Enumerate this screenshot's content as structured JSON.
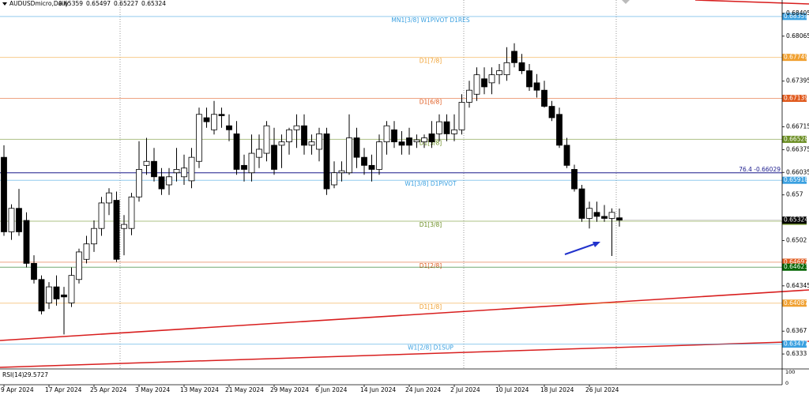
{
  "chart_data": {
    "type": "candlestick",
    "title": "AUDUSDmicro,Daily",
    "ylim": [
      0.63119,
      0.68604
    ],
    "yticks": [
      0.68405,
      0.68065,
      0.67395,
      0.66715,
      0.66375,
      0.66035,
      0.657,
      0.6502,
      0.64345,
      0.6367,
      0.6333
    ],
    "categories": [
      "9 Apr 2024",
      null,
      null,
      null,
      null,
      null,
      "17 Apr 2024",
      null,
      null,
      null,
      null,
      null,
      "25 Apr 2024",
      null,
      null,
      null,
      null,
      null,
      "3 May 2024",
      null,
      null,
      null,
      null,
      null,
      "13 May 2024",
      null,
      null,
      null,
      null,
      null,
      "21 May 2024",
      null,
      null,
      null,
      null,
      null,
      "29 May 2024",
      null,
      null,
      null,
      null,
      null,
      "6 Jun 2024",
      null,
      null,
      null,
      null,
      null,
      "14 Jun 2024",
      null,
      null,
      null,
      null,
      null,
      "24 Jun 2024",
      null,
      null,
      null,
      null,
      null,
      "2 Jul 2024",
      null,
      null,
      null,
      null,
      null,
      "10 Jul 2024",
      null,
      null,
      null,
      null,
      null,
      "18 Jul 2024",
      null,
      null,
      null,
      null,
      null,
      "26 Jul 2024",
      null,
      null,
      null,
      null
    ],
    "up_color": "#ffffff",
    "down_color": "#000000",
    "candles": [
      [
        0.6626,
        0.6644,
        0.6509,
        0.6515
      ],
      [
        0.6515,
        0.6556,
        0.6503,
        0.655
      ],
      [
        0.655,
        0.6579,
        0.6509,
        0.6515
      ],
      [
        0.6532,
        0.6544,
        0.6462,
        0.6468
      ],
      [
        0.6468,
        0.648,
        0.6438,
        0.6444
      ],
      [
        0.6444,
        0.645,
        0.6392,
        0.6397
      ],
      [
        0.6409,
        0.644,
        0.64,
        0.6433
      ],
      [
        0.6433,
        0.645,
        0.6405,
        0.6415
      ],
      [
        0.6421,
        0.6433,
        0.6362,
        0.6418
      ],
      [
        0.6409,
        0.6462,
        0.6403,
        0.645
      ],
      [
        0.6444,
        0.649,
        0.6438,
        0.6485
      ],
      [
        0.6474,
        0.6509,
        0.6468,
        0.6497
      ],
      [
        0.6497,
        0.6532,
        0.6485,
        0.652
      ],
      [
        0.652,
        0.6567,
        0.6509,
        0.6558
      ],
      [
        0.6558,
        0.658,
        0.654,
        0.6573
      ],
      [
        0.6562,
        0.6575,
        0.647,
        0.6474
      ],
      [
        0.652,
        0.654,
        0.648,
        0.6526
      ],
      [
        0.652,
        0.6573,
        0.651,
        0.6567
      ],
      [
        0.6567,
        0.665,
        0.656,
        0.6608
      ],
      [
        0.6614,
        0.6655,
        0.66,
        0.662
      ],
      [
        0.662,
        0.664,
        0.659,
        0.6597
      ],
      [
        0.6597,
        0.661,
        0.657,
        0.6579
      ],
      [
        0.6585,
        0.661,
        0.657,
        0.6597
      ],
      [
        0.6603,
        0.664,
        0.659,
        0.6608
      ],
      [
        0.6597,
        0.663,
        0.6585,
        0.661
      ],
      [
        0.6591,
        0.664,
        0.658,
        0.6626
      ],
      [
        0.662,
        0.67,
        0.661,
        0.669
      ],
      [
        0.6685,
        0.67,
        0.667,
        0.6679
      ],
      [
        0.6667,
        0.671,
        0.666,
        0.669
      ],
      [
        0.669,
        0.67,
        0.667,
        0.6688
      ],
      [
        0.6673,
        0.669,
        0.665,
        0.6667
      ],
      [
        0.6661,
        0.668,
        0.66,
        0.6608
      ],
      [
        0.6614,
        0.663,
        0.659,
        0.6608
      ],
      [
        0.6603,
        0.666,
        0.659,
        0.6632
      ],
      [
        0.6626,
        0.666,
        0.661,
        0.6638
      ],
      [
        0.6632,
        0.668,
        0.662,
        0.6673
      ],
      [
        0.6644,
        0.667,
        0.66,
        0.6608
      ],
      [
        0.6644,
        0.666,
        0.661,
        0.6649
      ],
      [
        0.6649,
        0.667,
        0.663,
        0.6667
      ],
      [
        0.6667,
        0.669,
        0.664,
        0.6673
      ],
      [
        0.6673,
        0.669,
        0.663,
        0.6644
      ],
      [
        0.6644,
        0.666,
        0.663,
        0.6649
      ],
      [
        0.6638,
        0.667,
        0.662,
        0.6661
      ],
      [
        0.6661,
        0.667,
        0.657,
        0.6579
      ],
      [
        0.6585,
        0.662,
        0.658,
        0.6603
      ],
      [
        0.6603,
        0.662,
        0.659,
        0.6606
      ],
      [
        0.6603,
        0.669,
        0.66,
        0.6655
      ],
      [
        0.6655,
        0.667,
        0.661,
        0.6626
      ],
      [
        0.6626,
        0.664,
        0.66,
        0.6614
      ],
      [
        0.6614,
        0.663,
        0.659,
        0.6608
      ],
      [
        0.6608,
        0.666,
        0.66,
        0.6649
      ],
      [
        0.6649,
        0.668,
        0.663,
        0.6673
      ],
      [
        0.6667,
        0.668,
        0.664,
        0.6649
      ],
      [
        0.6649,
        0.6665,
        0.663,
        0.6644
      ],
      [
        0.6655,
        0.667,
        0.663,
        0.6644
      ],
      [
        0.6649,
        0.666,
        0.664,
        0.6652
      ],
      [
        0.6649,
        0.666,
        0.664,
        0.6655
      ],
      [
        0.6661,
        0.668,
        0.664,
        0.6649
      ],
      [
        0.6661,
        0.669,
        0.665,
        0.6679
      ],
      [
        0.6679,
        0.669,
        0.665,
        0.6661
      ],
      [
        0.6661,
        0.669,
        0.665,
        0.6667
      ],
      [
        0.6667,
        0.672,
        0.666,
        0.6708
      ],
      [
        0.6708,
        0.674,
        0.67,
        0.6726
      ],
      [
        0.672,
        0.676,
        0.671,
        0.6749
      ],
      [
        0.6743,
        0.676,
        0.672,
        0.6731
      ],
      [
        0.6737,
        0.676,
        0.672,
        0.6749
      ],
      [
        0.6749,
        0.6765,
        0.6735,
        0.6755
      ],
      [
        0.6749,
        0.679,
        0.674,
        0.6767
      ],
      [
        0.6784,
        0.6796,
        0.676,
        0.6767
      ],
      [
        0.6767,
        0.678,
        0.675,
        0.6755
      ],
      [
        0.6755,
        0.6765,
        0.6725,
        0.6731
      ],
      [
        0.6737,
        0.675,
        0.6715,
        0.6726
      ],
      [
        0.6726,
        0.674,
        0.67,
        0.6702
      ],
      [
        0.6702,
        0.671,
        0.668,
        0.6685
      ],
      [
        0.669,
        0.67,
        0.664,
        0.6644
      ],
      [
        0.6644,
        0.6655,
        0.661,
        0.6614
      ],
      [
        0.6608,
        0.6615,
        0.6575,
        0.6579
      ],
      [
        0.6579,
        0.6585,
        0.653,
        0.6535
      ],
      [
        0.6535,
        0.656,
        0.652,
        0.655
      ],
      [
        0.6544,
        0.656,
        0.653,
        0.6538
      ],
      [
        0.6538,
        0.6555,
        0.653,
        0.6535
      ],
      [
        0.6535,
        0.655,
        0.6479,
        0.6544
      ],
      [
        0.65359,
        0.65497,
        0.65227,
        0.65324
      ]
    ],
    "last_price_color": "#000000",
    "levels": [
      {
        "label": "MN1[3/8] W1PIVOT D1RES",
        "value": 0.68359,
        "color": "#3aa0e0",
        "box": true
      },
      {
        "label": "D1[7/8]",
        "value": 0.67749,
        "color": "#f0a030",
        "box": true
      },
      {
        "label": "D1[6/8]",
        "value": 0.67139,
        "color": "#e05a1e",
        "box": true
      },
      {
        "label": "D1[5/8]",
        "value": 0.66528,
        "color": "#6b8e23",
        "box": true
      },
      {
        "label": "76.4 -0.66029",
        "value": 0.66029,
        "color": "#1a1a8c",
        "box": false
      },
      {
        "label": "W1[3/8] D1PIVOT",
        "value": 0.65918,
        "color": "#3aa0e0",
        "box": true
      },
      {
        "label": "D1[3/8]",
        "value": 0.65308,
        "color": "#6b8e23",
        "box": true
      },
      {
        "label": "D1[2/8]",
        "value": 0.64697,
        "color": "#e05a1e",
        "box": true
      },
      {
        "value": 0.64623,
        "color": "#006400",
        "box": true
      },
      {
        "label": "D1[1/8]",
        "value": 0.64087,
        "color": "#f0a030",
        "box": true
      },
      {
        "label": "W1[2/8] D1SUP",
        "value": 0.63477,
        "color": "#3aa0e0",
        "box": true
      }
    ],
    "rsi": {
      "label": "RSI(14)",
      "value": 29.5727,
      "ticks": [
        100,
        0
      ]
    }
  }
}
